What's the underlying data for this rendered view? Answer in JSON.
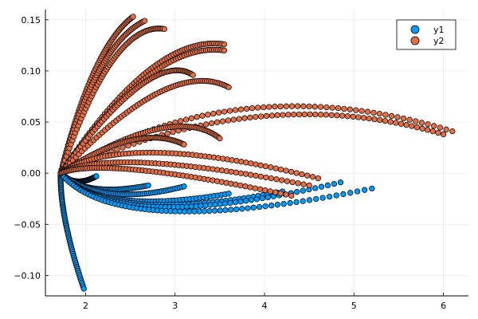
{
  "chart_data": {
    "type": "scatter",
    "title": "",
    "xlabel": "",
    "ylabel": "",
    "xlim": [
      1.55,
      6.28
    ],
    "ylim": [
      -0.12,
      0.16
    ],
    "xticks": [
      2,
      3,
      4,
      5,
      6
    ],
    "yticks": [
      -0.1,
      -0.05,
      0.0,
      0.05,
      0.1,
      0.15
    ],
    "xtick_labels": [
      "2",
      "3",
      "4",
      "5",
      "6"
    ],
    "ytick_labels": [
      "−0.10",
      "−0.05",
      "0.00",
      "0.05",
      "0.10",
      "0.15"
    ],
    "grid": true,
    "legend_position": "top-right",
    "marker": "circle",
    "series": [
      {
        "name": "y1",
        "color": "#009AFA",
        "curves": [
          {
            "start": [
              1.72,
              0.0
            ],
            "end": [
              1.98,
              -0.113
            ],
            "peak": [
              1.78,
              -0.05
            ]
          },
          {
            "start": [
              1.72,
              0.0
            ],
            "end": [
              2.12,
              -0.003
            ],
            "peak": [
              1.9,
              -0.008
            ]
          },
          {
            "start": [
              1.72,
              0.0
            ],
            "end": [
              2.7,
              -0.012
            ],
            "peak": [
              2.1,
              -0.015
            ]
          },
          {
            "start": [
              1.72,
              0.0
            ],
            "end": [
              3.1,
              -0.013
            ],
            "peak": [
              2.3,
              -0.02
            ]
          },
          {
            "start": [
              1.72,
              0.0
            ],
            "end": [
              3.6,
              -0.02
            ],
            "peak": [
              2.4,
              -0.026
            ]
          },
          {
            "start": [
              1.72,
              0.0
            ],
            "end": [
              4.2,
              -0.018
            ],
            "peak": [
              2.6,
              -0.03
            ]
          },
          {
            "start": [
              1.72,
              0.0
            ],
            "end": [
              4.85,
              -0.009
            ],
            "peak": [
              2.8,
              -0.033
            ]
          },
          {
            "start": [
              1.72,
              0.0
            ],
            "end": [
              5.2,
              -0.015
            ],
            "peak": [
              2.9,
              -0.037
            ]
          }
        ]
      },
      {
        "name": "y2",
        "color": "#E26F46",
        "curves": [
          {
            "start": [
              1.72,
              0.0
            ],
            "end": [
              2.53,
              0.153
            ],
            "peak": [
              2.1,
              0.1
            ]
          },
          {
            "start": [
              1.72,
              0.0
            ],
            "end": [
              2.66,
              0.149
            ],
            "peak": [
              2.15,
              0.1
            ]
          },
          {
            "start": [
              1.72,
              0.0
            ],
            "end": [
              2.88,
              0.141
            ],
            "peak": [
              2.3,
              0.11
            ]
          },
          {
            "start": [
              1.72,
              0.0
            ],
            "end": [
              3.55,
              0.126
            ],
            "peak": [
              2.7,
              0.1
            ]
          },
          {
            "start": [
              1.72,
              0.0
            ],
            "end": [
              3.55,
              0.12
            ],
            "peak": [
              2.7,
              0.095
            ]
          },
          {
            "start": [
              1.72,
              0.0
            ],
            "end": [
              3.2,
              0.096
            ],
            "peak": [
              2.6,
              0.085
            ]
          },
          {
            "start": [
              1.72,
              0.0
            ],
            "end": [
              3.6,
              0.084
            ],
            "peak": [
              2.8,
              0.078
            ]
          },
          {
            "start": [
              1.72,
              0.0
            ],
            "end": [
              6.1,
              0.041
            ],
            "peak": [
              3.8,
              0.063
            ]
          },
          {
            "start": [
              1.72,
              0.0
            ],
            "end": [
              6.0,
              0.038
            ],
            "peak": [
              3.9,
              0.055
            ]
          },
          {
            "start": [
              1.72,
              0.0
            ],
            "end": [
              3.5,
              0.034
            ],
            "peak": [
              2.8,
              0.043
            ]
          },
          {
            "start": [
              1.72,
              0.0
            ],
            "end": [
              3.1,
              0.028
            ],
            "peak": [
              2.5,
              0.032
            ]
          },
          {
            "start": [
              1.72,
              0.0
            ],
            "end": [
              4.6,
              -0.005
            ],
            "peak": [
              2.8,
              0.02
            ]
          },
          {
            "start": [
              1.72,
              0.0
            ],
            "end": [
              4.5,
              -0.012
            ],
            "peak": [
              2.7,
              0.01
            ]
          },
          {
            "start": [
              1.72,
              0.0
            ],
            "end": [
              4.3,
              -0.022
            ],
            "peak": [
              2.6,
              0.003
            ]
          }
        ]
      }
    ]
  },
  "legend": {
    "items": [
      {
        "label": "y1",
        "color": "#009AFA"
      },
      {
        "label": "y2",
        "color": "#E26F46"
      }
    ]
  }
}
